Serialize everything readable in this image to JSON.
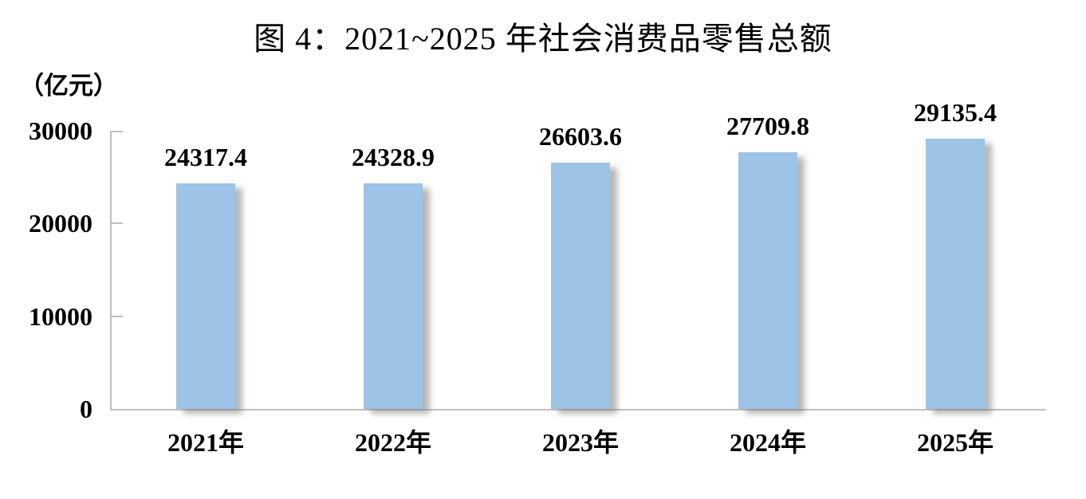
{
  "figure": {
    "title": "图 4：2021~2025 年社会消费品零售总额",
    "unit_label": "（亿元）"
  },
  "chart_data": {
    "type": "bar",
    "title": "图 4：2021~2025 年社会消费品零售总额",
    "ylabel": "（亿元）",
    "xlabel": "",
    "categories": [
      "2021年",
      "2022年",
      "2023年",
      "2024年",
      "2025年"
    ],
    "values": [
      24317.4,
      24328.9,
      26603.6,
      27709.8,
      29135.4
    ],
    "value_labels": [
      "24317.4",
      "24328.9",
      "26603.6",
      "27709.8",
      "29135.4"
    ],
    "ylim": [
      0,
      30000
    ],
    "yticks": [
      0,
      10000,
      20000,
      30000
    ],
    "grid": false,
    "legend": "none",
    "bar_color": "#9DC3E6",
    "bar_shadow_color": "#7D7D7D",
    "axis_color": "#BFBFBF",
    "text_color": "#000000"
  }
}
